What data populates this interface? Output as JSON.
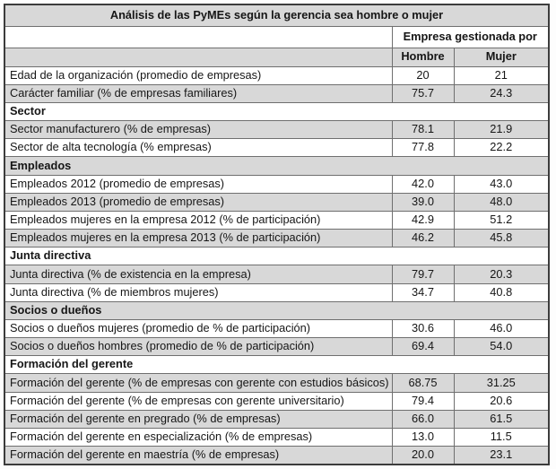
{
  "table": {
    "title": "Análisis de las PyMEs según la gerencia sea hombre o mujer",
    "column_group": "Empresa gestionada por",
    "columns": [
      "Hombre",
      "Mujer"
    ],
    "rows": [
      {
        "type": "data",
        "label": "Edad de la organización (promedio de empresas)",
        "hombre": "20",
        "mujer": "21",
        "shaded": false
      },
      {
        "type": "data",
        "label": "Carácter familiar (% de empresas familiares)",
        "hombre": "75.7",
        "mujer": "24.3",
        "shaded": true
      },
      {
        "type": "section",
        "label": "Sector",
        "shaded": false
      },
      {
        "type": "data",
        "label": "Sector manufacturero (% de empresas)",
        "hombre": "78.1",
        "mujer": "21.9",
        "shaded": true
      },
      {
        "type": "data",
        "label": "Sector de alta tecnología (% empresas)",
        "hombre": "77.8",
        "mujer": "22.2",
        "shaded": false
      },
      {
        "type": "section",
        "label": "Empleados",
        "shaded": true
      },
      {
        "type": "data",
        "label": "Empleados 2012 (promedio de empresas)",
        "hombre": "42.0",
        "mujer": "43.0",
        "shaded": false
      },
      {
        "type": "data",
        "label": "Empleados 2013 (promedio de empresas)",
        "hombre": "39.0",
        "mujer": "48.0",
        "shaded": true
      },
      {
        "type": "data",
        "label": "Empleados mujeres en la empresa 2012 (% de participación)",
        "hombre": "42.9",
        "mujer": "51.2",
        "shaded": false
      },
      {
        "type": "data",
        "label": "Empleados mujeres en la empresa 2013 (% de participación)",
        "hombre": "46.2",
        "mujer": "45.8",
        "shaded": true
      },
      {
        "type": "section",
        "label": "Junta directiva",
        "shaded": false
      },
      {
        "type": "data",
        "label": "Junta directiva (% de existencia en la empresa)",
        "hombre": "79.7",
        "mujer": "20.3",
        "shaded": true
      },
      {
        "type": "data",
        "label": "Junta directiva (% de miembros mujeres)",
        "hombre": "34.7",
        "mujer": "40.8",
        "shaded": false
      },
      {
        "type": "section",
        "label": "Socios o dueños",
        "shaded": true
      },
      {
        "type": "data",
        "label": "Socios o dueños mujeres (promedio de % de participación)",
        "hombre": "30.6",
        "mujer": "46.0",
        "shaded": false
      },
      {
        "type": "data",
        "label": "Socios o dueños hombres (promedio de % de participación)",
        "hombre": "69.4",
        "mujer": "54.0",
        "shaded": true
      },
      {
        "type": "section",
        "label": "Formación del gerente",
        "shaded": false
      },
      {
        "type": "data",
        "label": "Formación del gerente (% de empresas con gerente con estudios básicos)",
        "hombre": "68.75",
        "mujer": "31.25",
        "shaded": true
      },
      {
        "type": "data",
        "label": "Formación del gerente (% de empresas con gerente universitario)",
        "hombre": "79.4",
        "mujer": "20.6",
        "shaded": false
      },
      {
        "type": "data",
        "label": "Formación del gerente en pregrado (% de empresas)",
        "hombre": "66.0",
        "mujer": "61.5",
        "shaded": true
      },
      {
        "type": "data",
        "label": "Formación del gerente en especialización (% de empresas)",
        "hombre": "13.0",
        "mujer": "11.5",
        "shaded": false
      },
      {
        "type": "data",
        "label": "Formación del gerente en maestría (% de empresas)",
        "hombre": "20.0",
        "mujer": "23.1",
        "shaded": true
      }
    ]
  },
  "colors": {
    "shaded_row": "#d8d8d8",
    "inner_border": "#6f6f6f",
    "outer_border": "#3c3c3c",
    "text": "#161616"
  }
}
